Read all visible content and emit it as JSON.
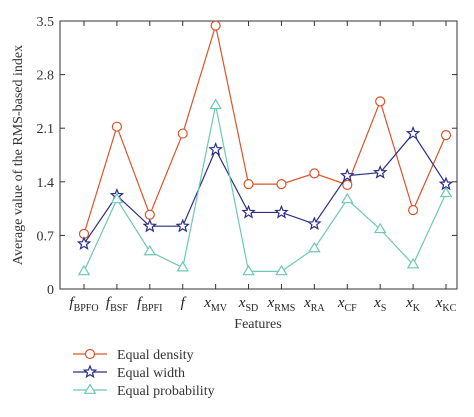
{
  "chart_data": {
    "type": "line",
    "categories": [
      {
        "base": "f",
        "sub": "BPFO"
      },
      {
        "base": "f",
        "sub": "BSF"
      },
      {
        "base": "f",
        "sub": "BPFI"
      },
      {
        "base": "f",
        "sub": ""
      },
      {
        "base": "x",
        "sub": "MV"
      },
      {
        "base": "x",
        "sub": "SD"
      },
      {
        "base": "x",
        "sub": "RMS"
      },
      {
        "base": "x",
        "sub": "RA"
      },
      {
        "base": "x",
        "sub": "CF"
      },
      {
        "base": "x",
        "sub": "S"
      },
      {
        "base": "x",
        "sub": "K"
      },
      {
        "base": "x",
        "sub": "KC"
      }
    ],
    "xlabel": "Features",
    "ylabel": "Average value of the RMS-based index",
    "ylim": [
      0,
      3.5
    ],
    "yticks": [
      "0",
      "0.7",
      "1.4",
      "2.1",
      "2.8",
      "3.5"
    ],
    "grid": false,
    "legend_position": "bottom-left",
    "series": [
      {
        "name": "Equal density",
        "marker": "circle",
        "color": "#d9542c",
        "values": [
          0.72,
          2.12,
          0.97,
          2.03,
          3.44,
          1.37,
          1.37,
          1.51,
          1.36,
          2.45,
          1.03,
          2.01
        ]
      },
      {
        "name": "Equal width",
        "marker": "star",
        "color": "#2a2d86",
        "values": [
          0.59,
          1.22,
          0.82,
          0.82,
          1.82,
          1.0,
          1.0,
          0.85,
          1.48,
          1.52,
          2.03,
          1.37
        ]
      },
      {
        "name": "Equal probability",
        "marker": "triangle",
        "color": "#6fc7b4",
        "values": [
          0.23,
          1.17,
          0.49,
          0.28,
          2.4,
          0.23,
          0.23,
          0.53,
          1.17,
          0.78,
          0.32,
          1.25
        ]
      }
    ]
  }
}
